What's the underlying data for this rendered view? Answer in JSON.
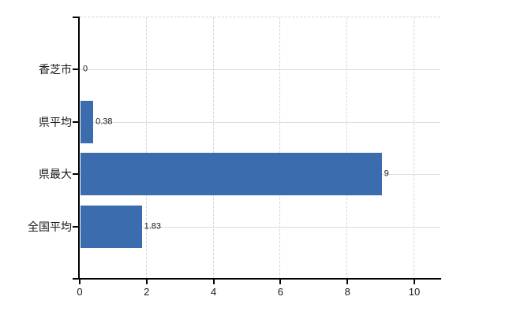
{
  "chart_data": {
    "type": "bar",
    "orientation": "horizontal",
    "title": "",
    "categories": [
      "香芝市",
      "県平均",
      "県最大",
      "全国平均"
    ],
    "values": [
      0,
      0.38,
      9,
      1.83
    ],
    "value_labels": [
      "0",
      "0.38",
      "9",
      "1.83"
    ],
    "x_tick_labels": [
      "0",
      "2",
      "4",
      "6",
      "8",
      "10"
    ],
    "x_tick_values": [
      0,
      2,
      4,
      6,
      8,
      10
    ],
    "xlim": [
      0,
      10.78
    ],
    "grid": "on",
    "legend_position": "none",
    "colors": {
      "bar": "#3b6cad",
      "axis": "#000000",
      "h_gridline": "#dadfd6",
      "v_gridline": "#d7d3d7",
      "text": "#1a1a1a",
      "background": "#ffffff"
    }
  }
}
